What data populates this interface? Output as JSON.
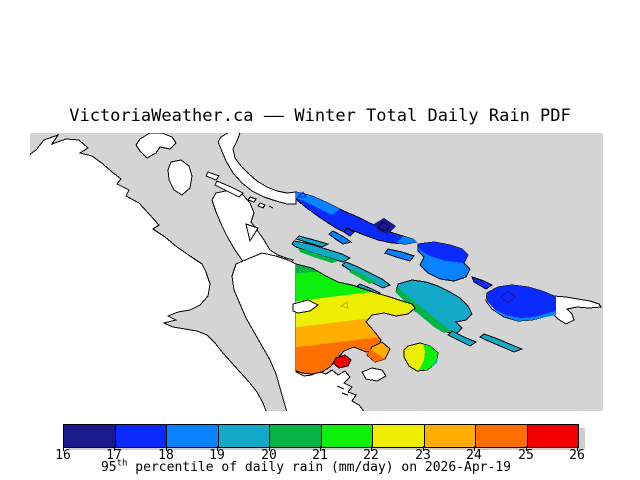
{
  "title": "VictoriaWeather.ca —— Winter Total Daily Rain PDF",
  "caption": {
    "base": "95",
    "sup": "th",
    "rest": " percentile of daily rain (mm/day) on 2026-Apr-19"
  },
  "map": {
    "water_color": "#D4D4D4",
    "land_color": "#FFFFFF",
    "coast_color": "#000000",
    "shadow_color": "#CDCDCD"
  },
  "colorbar": {
    "min": 16,
    "max": 26,
    "unit": "mm/day",
    "ticks": [
      "16",
      "17",
      "18",
      "19",
      "20",
      "21",
      "22",
      "23",
      "24",
      "25",
      "26"
    ],
    "colors": [
      "#1A1A8C",
      "#0A2AFF",
      "#0882FF",
      "#12AAC8",
      "#06B445",
      "#0CF00C",
      "#EEEE02",
      "#FFAE00",
      "#FF6E00",
      "#F20000"
    ]
  },
  "chart_data": {
    "type": "heatmap",
    "title": "VictoriaWeather.ca —— Winter Total Daily Rain PDF",
    "legend": {
      "label": "95th percentile of daily rain (mm/day) on 2026-Apr-19",
      "range": [
        16,
        26
      ],
      "tick_step": 1,
      "unit": "mm/day",
      "position": "bottom"
    },
    "regions": [
      {
        "area": "long-northeast-island",
        "value_range_mm_day": [
          16,
          19
        ]
      },
      {
        "area": "middle-northeast-island-group",
        "value_range_mm_day": [
          17,
          19
        ]
      },
      {
        "area": "east-island-with-white-tip",
        "value_range_mm_day": [
          17,
          19
        ]
      },
      {
        "area": "small-islands-off-peninsula-tip",
        "value_range_mm_day": [
          19,
          21
        ]
      },
      {
        "area": "central-stripe-islands",
        "value_range_mm_day": [
          19,
          21
        ]
      },
      {
        "area": "southeast-island-group",
        "value_range_mm_day": [
          19,
          21
        ]
      },
      {
        "area": "peninsula-gradient-wedge",
        "value_range_mm_day": [
          20,
          25
        ]
      },
      {
        "area": "small-diamond-island",
        "value_range_mm_day": [
          23,
          25
        ]
      },
      {
        "area": "small-red-island",
        "value_range_mm_day": [
          25,
          26
        ]
      },
      {
        "area": "small-yellow-green-island",
        "value_range_mm_day": [
          20,
          23
        ]
      }
    ]
  }
}
